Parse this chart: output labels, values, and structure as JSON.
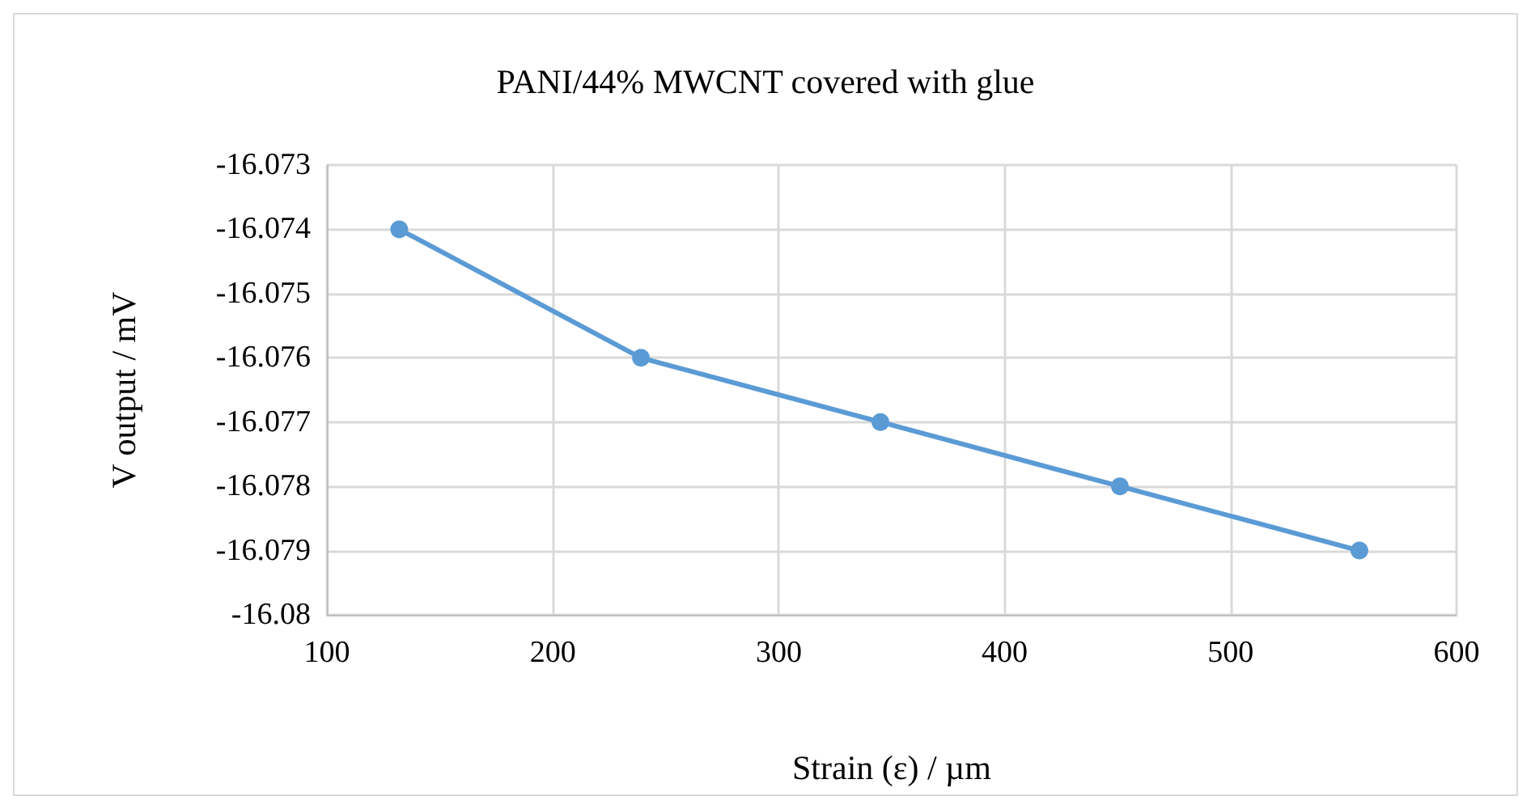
{
  "chart_data": {
    "type": "line",
    "title": "PANI/44% MWCNT covered with glue",
    "xlabel": "Strain (ε) / µm",
    "ylabel": "V output / mV",
    "x": [
      132,
      239,
      345,
      451,
      557
    ],
    "series": [
      {
        "color": "#5b9bd5",
        "values": [
          -16.074,
          -16.076,
          -16.077,
          -16.078,
          -16.079
        ]
      }
    ],
    "xlim": [
      100,
      600
    ],
    "xticks": [
      100,
      200,
      300,
      400,
      500,
      600
    ],
    "ylim": [
      -16.08,
      -16.073
    ],
    "yticks": [
      -16.08,
      -16.079,
      -16.078,
      -16.077,
      -16.076,
      -16.075,
      -16.074,
      -16.073
    ],
    "grid": true,
    "marker": "circle",
    "line_style": "solid"
  }
}
